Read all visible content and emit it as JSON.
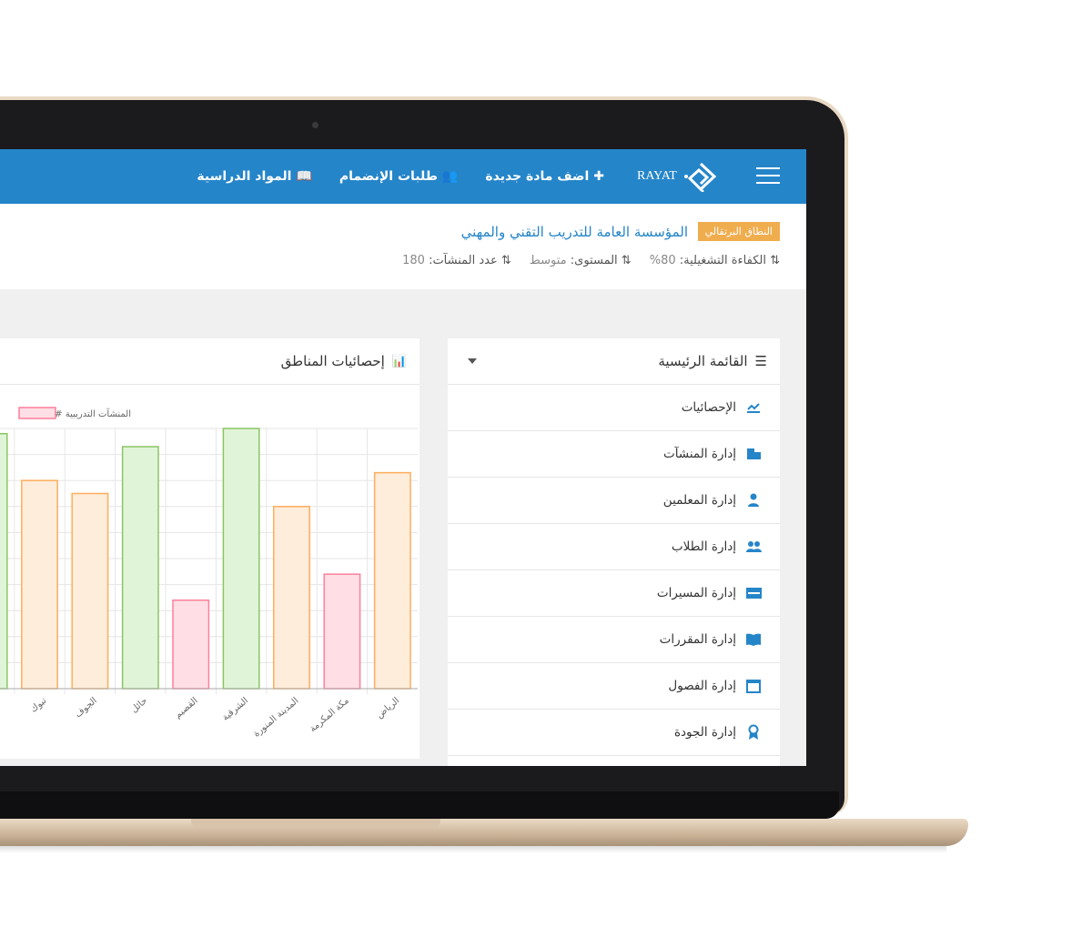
{
  "navbar": {
    "brand": "RAYAT",
    "links": [
      {
        "label": "اضف مادة جديدة",
        "icon": "plus-icon"
      },
      {
        "label": "طلبات الإنضمام",
        "icon": "users-icon"
      },
      {
        "label": "المواد الدراسية",
        "icon": "book-icon"
      }
    ]
  },
  "info": {
    "badge": "النطاق البرتقالي",
    "organization": "المؤسسة العامة للتدريب التقني والمهني",
    "stats": [
      {
        "label": "الكفاءة التشغيلية:",
        "value": "80%"
      },
      {
        "label": "المستوى:",
        "value": "متوسط"
      },
      {
        "label": "عدد المنشآت:",
        "value": "180"
      }
    ]
  },
  "sidebar": {
    "title": "القائمة الرئيسية",
    "items": [
      {
        "label": "الإحصائيات",
        "icon": "chart-line-icon"
      },
      {
        "label": "إدارة المنشآت",
        "icon": "building-icon"
      },
      {
        "label": "إدارة المعلمين",
        "icon": "user-tie-icon"
      },
      {
        "label": "إدارة الطلاب",
        "icon": "users-icon"
      },
      {
        "label": "إدارة المسيرات",
        "icon": "id-card-icon"
      },
      {
        "label": "إدارة المقررات",
        "icon": "book-icon"
      },
      {
        "label": "إدارة الفصول",
        "icon": "calendar-icon"
      },
      {
        "label": "إدارة الجودة",
        "icon": "award-icon"
      }
    ]
  },
  "chart_panel": {
    "title": "إحصائيات المناطق"
  },
  "colors": {
    "primary": "#2585c9",
    "badge": "#f0ad4e",
    "orange": "#ffad5c",
    "pink": "#ff7f9b",
    "green": "#8cc464"
  },
  "chart_data": {
    "type": "bar",
    "legend": "# المنشآت التدريبية",
    "legend_position": "top",
    "grid": true,
    "categories": [
      "الرياض",
      "مكة المكرمة",
      "المدينة المنورة",
      "الشرقية",
      "القصيم",
      "حائل",
      "الجوف",
      "تبوك",
      ""
    ],
    "values": [
      8.3,
      4.4,
      7.0,
      10,
      3.4,
      9.3,
      7.5,
      8.0,
      9.8
    ],
    "bar_colors": [
      "orange",
      "pink",
      "orange",
      "green",
      "pink",
      "green",
      "orange",
      "orange",
      "green"
    ],
    "ylim": [
      0,
      10
    ]
  }
}
